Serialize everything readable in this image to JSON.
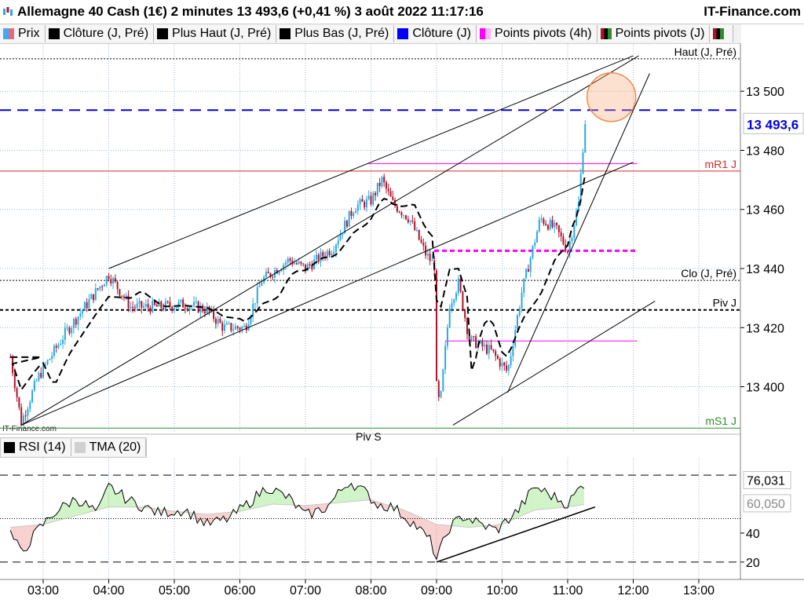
{
  "header": {
    "title": "Allemagne 40 Cash (1€) 2 minutes 13 493,6 (+0,41 %) 3 août 2022 11:17:16",
    "brand": "IT-Finance.com"
  },
  "legend": [
    {
      "label": "Prix",
      "color": "#3fa9f5"
    },
    {
      "label": "Clôture (J, Pré)",
      "color": "#000000"
    },
    {
      "label": "Plus Haut (J, Pré)",
      "color": "#000000"
    },
    {
      "label": "Plus Bas (J, Pré)",
      "color": "#000000"
    },
    {
      "label": "Clôture (J)",
      "color": "#0000ff"
    },
    {
      "label": "Points pivots (4h)",
      "color": "#ff00ff"
    },
    {
      "label": "Points pivots (J)",
      "color": "#008000"
    }
  ],
  "rsi_legend": [
    {
      "label": "RSI (14)",
      "color": "#000000"
    },
    {
      "label": "TMA (20)",
      "color": "#d0d0d0"
    }
  ],
  "watermark": "IT-Finance.com",
  "colors": {
    "up": "#29a8e0",
    "down": "#b0122a",
    "grid": "#000000",
    "pivot_magenta": "#ff00ff",
    "close_blue": "#0000dd",
    "support_green": "#2e8b2e",
    "resistance_red": "#d22b2b"
  },
  "chart_data": [
    {
      "type": "candlestick",
      "title": "Allemagne 40 Cash (1€) 2 minutes",
      "timeframe": "2 minutes",
      "x_labels": [
        "03:00",
        "04:00",
        "05:00",
        "06:00",
        "07:00",
        "08:00",
        "09:00",
        "10:00",
        "11:00",
        "12:00",
        "13:00"
      ],
      "y_ticks": [
        "13 400",
        "13 420",
        "13 440",
        "13 460",
        "13 480",
        "13 500"
      ],
      "ylim": [
        13385,
        13516
      ],
      "last_price": "13 493,6",
      "price_path": [
        {
          "t": "02:30",
          "p": 13410
        },
        {
          "t": "02:40",
          "p": 13388
        },
        {
          "t": "02:55",
          "p": 13403
        },
        {
          "t": "03:20",
          "p": 13418
        },
        {
          "t": "03:40",
          "p": 13428
        },
        {
          "t": "04:00",
          "p": 13438
        },
        {
          "t": "04:20",
          "p": 13427
        },
        {
          "t": "04:45",
          "p": 13427
        },
        {
          "t": "05:10",
          "p": 13428
        },
        {
          "t": "05:30",
          "p": 13426
        },
        {
          "t": "05:45",
          "p": 13420
        },
        {
          "t": "06:05",
          "p": 13420
        },
        {
          "t": "06:20",
          "p": 13436
        },
        {
          "t": "06:45",
          "p": 13443
        },
        {
          "t": "07:00",
          "p": 13440
        },
        {
          "t": "07:25",
          "p": 13447
        },
        {
          "t": "07:45",
          "p": 13461
        },
        {
          "t": "08:00",
          "p": 13463
        },
        {
          "t": "08:10",
          "p": 13470
        },
        {
          "t": "08:20",
          "p": 13462
        },
        {
          "t": "08:35",
          "p": 13457
        },
        {
          "t": "08:50",
          "p": 13445
        },
        {
          "t": "08:58",
          "p": 13441
        },
        {
          "t": "09:00",
          "p": 13400
        },
        {
          "t": "09:03",
          "p": 13393
        },
        {
          "t": "09:12",
          "p": 13428
        },
        {
          "t": "09:20",
          "p": 13435
        },
        {
          "t": "09:30",
          "p": 13416
        },
        {
          "t": "09:50",
          "p": 13412
        },
        {
          "t": "10:05",
          "p": 13405
        },
        {
          "t": "10:18",
          "p": 13432
        },
        {
          "t": "10:35",
          "p": 13457
        },
        {
          "t": "10:50",
          "p": 13453
        },
        {
          "t": "11:00",
          "p": 13446
        },
        {
          "t": "11:10",
          "p": 13462
        },
        {
          "t": "11:15",
          "p": 13486
        },
        {
          "t": "11:17",
          "p": 13493.6
        }
      ],
      "levels": [
        {
          "label": "Haut (J, Pré)",
          "value": 13511,
          "style": "dotted"
        },
        {
          "label": "Clôture (J)",
          "value": 13493.6,
          "style": "dashed-blue"
        },
        {
          "label": "mR1 J",
          "value": 13473,
          "style": "solid-red"
        },
        {
          "label": "Clo (J, Pré)",
          "value": 13436,
          "style": "dotted"
        },
        {
          "label": "Piv J",
          "value": 13426,
          "style": "dashed"
        },
        {
          "label": "mS1 J",
          "value": 13386,
          "style": "solid-green"
        },
        {
          "label": "Piv S",
          "value": 13381,
          "style": "none"
        }
      ],
      "pivot_4h_segments": [
        {
          "value": 13475.5,
          "from": "08:00",
          "to": "12:00",
          "style": "solid"
        },
        {
          "value": 13446,
          "from": "09:00",
          "to": "12:00",
          "style": "dashed"
        },
        {
          "value": 13415.5,
          "from": "09:10",
          "to": "12:00",
          "style": "solid"
        }
      ]
    },
    {
      "type": "line",
      "title": "RSI (14)",
      "series": [
        {
          "name": "RSI (14)",
          "last_value": "76,031"
        },
        {
          "name": "TMA (20)",
          "last_value": "60,050"
        }
      ],
      "y_ticks": [
        "20",
        "40"
      ],
      "levels": [
        80,
        50,
        20
      ],
      "ylim": [
        8,
        92
      ],
      "rsi_path": [
        {
          "t": "02:30",
          "v": 40
        },
        {
          "t": "02:40",
          "v": 26
        },
        {
          "t": "02:55",
          "v": 42
        },
        {
          "t": "03:10",
          "v": 54
        },
        {
          "t": "03:30",
          "v": 64
        },
        {
          "t": "03:50",
          "v": 54
        },
        {
          "t": "04:00",
          "v": 72
        },
        {
          "t": "04:20",
          "v": 62
        },
        {
          "t": "04:45",
          "v": 54
        },
        {
          "t": "05:10",
          "v": 56
        },
        {
          "t": "05:30",
          "v": 46
        },
        {
          "t": "05:50",
          "v": 50
        },
        {
          "t": "06:10",
          "v": 62
        },
        {
          "t": "06:25",
          "v": 72
        },
        {
          "t": "06:45",
          "v": 64
        },
        {
          "t": "07:00",
          "v": 52
        },
        {
          "t": "07:20",
          "v": 58
        },
        {
          "t": "07:40",
          "v": 76
        },
        {
          "t": "07:55",
          "v": 68
        },
        {
          "t": "08:05",
          "v": 60
        },
        {
          "t": "08:20",
          "v": 58
        },
        {
          "t": "08:40",
          "v": 46
        },
        {
          "t": "08:55",
          "v": 34
        },
        {
          "t": "09:00",
          "v": 22
        },
        {
          "t": "09:12",
          "v": 44
        },
        {
          "t": "09:25",
          "v": 52
        },
        {
          "t": "09:40",
          "v": 46
        },
        {
          "t": "09:55",
          "v": 42
        },
        {
          "t": "10:15",
          "v": 56
        },
        {
          "t": "10:30",
          "v": 72
        },
        {
          "t": "10:50",
          "v": 64
        },
        {
          "t": "11:00",
          "v": 60
        },
        {
          "t": "11:10",
          "v": 70
        },
        {
          "t": "11:17",
          "v": 76
        }
      ],
      "tma_path": [
        {
          "t": "02:30",
          "v": 44
        },
        {
          "t": "03:00",
          "v": 46
        },
        {
          "t": "03:30",
          "v": 52
        },
        {
          "t": "04:00",
          "v": 58
        },
        {
          "t": "04:30",
          "v": 58
        },
        {
          "t": "05:00",
          "v": 55
        },
        {
          "t": "05:30",
          "v": 53
        },
        {
          "t": "06:00",
          "v": 55
        },
        {
          "t": "06:30",
          "v": 60
        },
        {
          "t": "07:00",
          "v": 59
        },
        {
          "t": "07:30",
          "v": 61
        },
        {
          "t": "08:00",
          "v": 63
        },
        {
          "t": "08:30",
          "v": 56
        },
        {
          "t": "09:00",
          "v": 46
        },
        {
          "t": "09:30",
          "v": 44
        },
        {
          "t": "10:00",
          "v": 46
        },
        {
          "t": "10:30",
          "v": 56
        },
        {
          "t": "11:00",
          "v": 58
        },
        {
          "t": "11:17",
          "v": 60
        }
      ]
    }
  ]
}
